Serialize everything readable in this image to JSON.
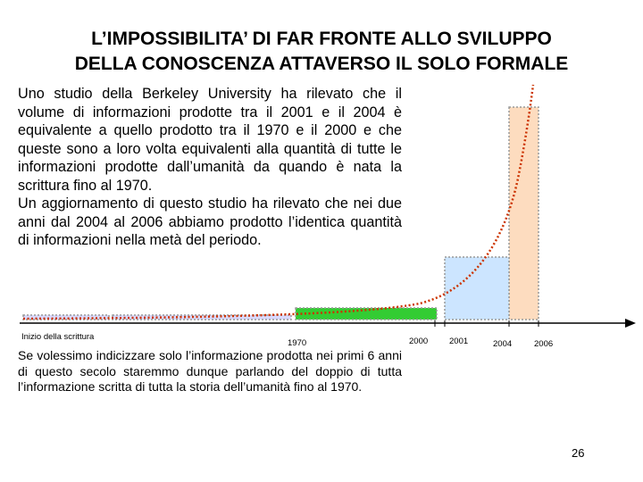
{
  "slide": {
    "title_line1": "L’IMPOSSIBILITA’ DI FAR FRONTE ALLO SVILUPPO",
    "title_line2": "DELLA CONOSCENZA ATTAVERSO IL SOLO FORMALE",
    "paragraph1": "Uno studio della Berkeley University ha rilevato che il volume di informazioni prodotte tra il 2001 e il 2004 è equivalente a quello prodotto tra il 1970 e il 2000 e che queste sono a loro volta equivalenti alla quantità di tutte le informazioni prodotte dall’umanità da quando è nata la scrittura fino al 1970.",
    "paragraph2": "Un aggiornamento di questo studio ha rilevato che nei due anni dal 2004 al 2006 abbiamo prodotto l’identica quantità di informazioni nella metà del periodo.",
    "bottom_paragraph": "Se volessimo indicizzare solo l’informazione prodotta nei primi 6 anni di questo secolo staremmo dunque parlando del doppio di tutta l’informazione scritta di tutta la storia dell’umanità fino al 1970.",
    "page_number": "26"
  },
  "timeline": {
    "labels": [
      "Inizio della scrittura",
      "1970",
      "2000",
      "2001",
      "2004",
      "2006"
    ],
    "colors": {
      "early_bar": "#d9d9ff",
      "bar_1970_2000": "#33cc33",
      "bar_2001_2004": "#cce5ff",
      "bar_2004_2006": "#fddcbf",
      "curve": "#cc3300",
      "dotted_outline": "#999999"
    }
  }
}
